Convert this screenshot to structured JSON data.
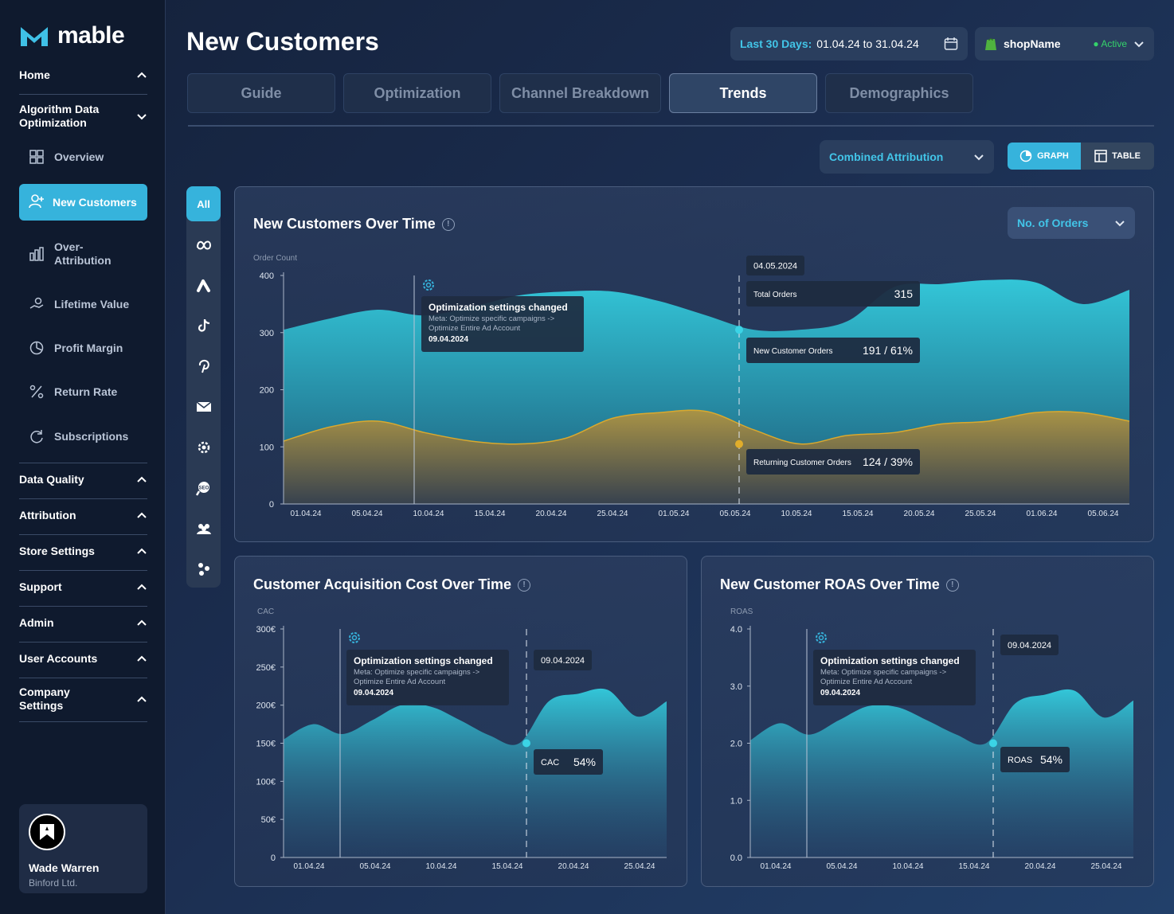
{
  "brand": {
    "name": "mable"
  },
  "sidebar": {
    "sections": {
      "home": "Home",
      "algo": "Algorithm Data Optimization",
      "data_quality": "Data Quality",
      "attribution": "Attribution",
      "store_settings": "Store Settings",
      "support": "Support",
      "admin": "Admin",
      "user_accounts": "User Accounts",
      "company_settings": "Company Settings"
    },
    "items": {
      "overview": "Overview",
      "new_customers": "New Customers",
      "over_attribution": "Over-Attribution",
      "lifetime_value": "Lifetime Value",
      "profit_margin": "Profit Margin",
      "return_rate": "Return Rate",
      "subscriptions": "Subscriptions"
    },
    "user": {
      "name": "Wade Warren",
      "company": "Binford Ltd."
    }
  },
  "header": {
    "title": "New Customers",
    "date_label": "Last 30 Days:",
    "date_range": "01.04.24 to 31.04.24",
    "shop_name": "shopName",
    "shop_status": "Active"
  },
  "tabs": [
    "Guide",
    "Optimization",
    "Channel Breakdown",
    "Trends",
    "Demographics"
  ],
  "active_tab": "Trends",
  "controls": {
    "attribution": "Combined Attribution",
    "graph_label": "GRAPH",
    "table_label": "TABLE",
    "metric": "No. of Orders"
  },
  "channels": {
    "all": "All"
  },
  "colors": {
    "accent": "#36b3dc",
    "teal": "#2fc3d6",
    "gold": "#c9a13a",
    "active": "#35d36b"
  },
  "chart_data": [
    {
      "type": "area",
      "title": "New Customers Over Time",
      "ylabel": "Order Count",
      "ylim": [
        0,
        400
      ],
      "yticks": [
        "0",
        "100",
        "200",
        "300",
        "400"
      ],
      "xticks": [
        "01.04.24",
        "05.04.24",
        "10.04.24",
        "15.04.24",
        "20.04.24",
        "25.04.24",
        "01.05.24",
        "05.05.24",
        "10.05.24",
        "15.05.24",
        "20.05.24",
        "25.05.24",
        "01.06.24",
        "05.06.24"
      ],
      "series": [
        {
          "name": "Total Orders",
          "values": [
            305,
            325,
            340,
            330,
            345,
            365,
            372,
            372,
            355,
            330,
            305,
            305,
            320,
            380,
            385,
            392,
            388,
            350,
            375
          ]
        },
        {
          "name": "Returning Customer Orders",
          "values": [
            110,
            135,
            145,
            125,
            110,
            105,
            115,
            150,
            160,
            162,
            130,
            105,
            120,
            125,
            140,
            145,
            160,
            160,
            145
          ]
        }
      ],
      "annotation": {
        "title": "Optimization settings changed",
        "line1": "Meta: Optimize specific campaigns ->",
        "line2": "Optimize Entire Ad Account",
        "date": "09.04.2024"
      },
      "tooltip": {
        "date": "04.05.2024",
        "total_label": "Total Orders",
        "total_value": "315",
        "new_label": "New Customer Orders",
        "new_value": "191 / 61%",
        "returning_label": "Returning Customer Orders",
        "returning_value": "124 / 39%"
      }
    },
    {
      "type": "area",
      "title": "Customer Acquisition Cost Over Time",
      "ylabel": "CAC",
      "ylim": [
        0,
        300
      ],
      "yticks": [
        "0",
        "50€",
        "100€",
        "150€",
        "200€",
        "250€",
        "300€"
      ],
      "xticks": [
        "01.04.24",
        "05.04.24",
        "10.04.24",
        "15.04.24",
        "20.04.24",
        "25.04.24"
      ],
      "values": [
        155,
        175,
        162,
        180,
        200,
        198,
        180,
        160,
        150,
        205,
        215,
        220,
        185,
        205
      ],
      "annotation": {
        "title": "Optimization settings changed",
        "line1": "Meta: Optimize specific campaigns ->",
        "line2": "Optimize Entire Ad Account",
        "date": "09.04.2024"
      },
      "tooltip": {
        "date": "09.04.2024",
        "label": "CAC",
        "value": "54%"
      }
    },
    {
      "type": "area",
      "title": "New Customer ROAS Over Time",
      "ylabel": "ROAS",
      "ylim": [
        0,
        4
      ],
      "yticks": [
        "0.0",
        "1.0",
        "2.0",
        "3.0",
        "4.0"
      ],
      "xticks": [
        "01.04.24",
        "05.04.24",
        "10.04.24",
        "15.04.24",
        "20.04.24",
        "25.04.24"
      ],
      "values": [
        2.05,
        2.35,
        2.15,
        2.4,
        2.65,
        2.63,
        2.4,
        2.15,
        2.0,
        2.7,
        2.85,
        2.92,
        2.45,
        2.75
      ],
      "annotation": {
        "title": "Optimization settings changed",
        "line1": "Meta: Optimize specific campaigns ->",
        "line2": "Optimize Entire Ad Account",
        "date": "09.04.2024"
      },
      "tooltip": {
        "date": "09.04.2024",
        "label": "ROAS",
        "value": "54%"
      }
    }
  ]
}
